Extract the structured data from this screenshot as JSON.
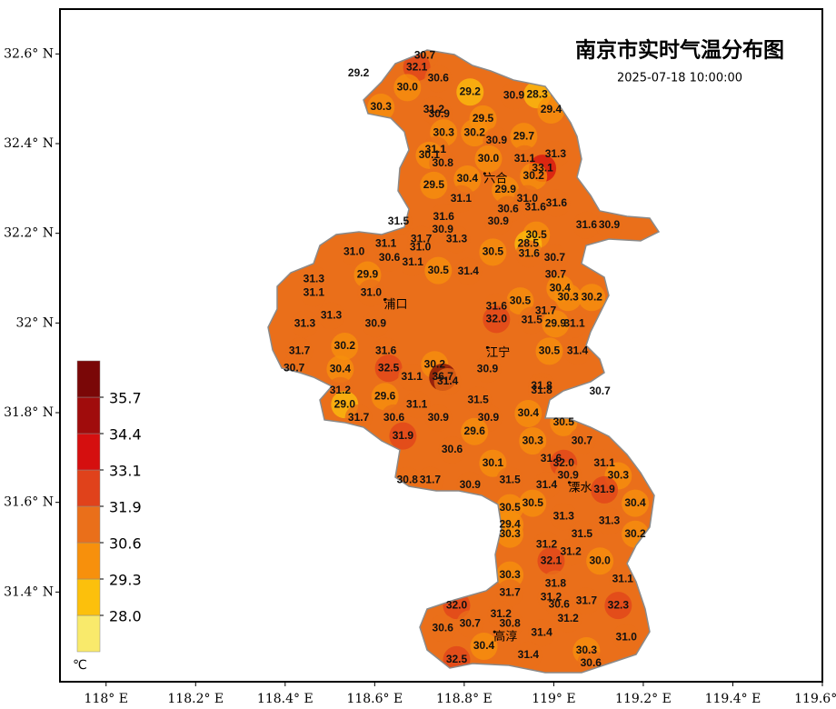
{
  "chart_data": {
    "type": "station-map",
    "title": "南京市实时气温分布图",
    "subtitle": "2025-07-18 10:00:00",
    "xlim": [
      117.897,
      119.6
    ],
    "ylim": [
      31.2,
      32.7
    ],
    "xticks": [
      {
        "value": 118.0,
        "label": "118° E"
      },
      {
        "value": 118.2,
        "label": "118.2° E"
      },
      {
        "value": 118.4,
        "label": "118.4° E"
      },
      {
        "value": 118.6,
        "label": "118.6° E"
      },
      {
        "value": 118.8,
        "label": "118.8° E"
      },
      {
        "value": 119.0,
        "label": "119° E"
      },
      {
        "value": 119.2,
        "label": "119.2° E"
      },
      {
        "value": 119.4,
        "label": "119.4° E"
      },
      {
        "value": 119.6,
        "label": "119.6° E"
      }
    ],
    "yticks": [
      {
        "value": 32.6,
        "label": "32.6° N"
      },
      {
        "value": 32.4,
        "label": "32.4° N"
      },
      {
        "value": 32.2,
        "label": "32.2° N"
      },
      {
        "value": 32.0,
        "label": "32° N"
      },
      {
        "value": 31.8,
        "label": "31.8° N"
      },
      {
        "value": 31.6,
        "label": "31.6° N"
      },
      {
        "value": 31.4,
        "label": "31.4° N"
      }
    ],
    "colorbar": {
      "unit": "℃",
      "levels": [
        {
          "value": 28.0,
          "label": "28.0"
        },
        {
          "value": 29.3,
          "label": "29.3"
        },
        {
          "value": 30.6,
          "label": "30.6"
        },
        {
          "value": 31.9,
          "label": "31.9"
        },
        {
          "value": 33.1,
          "label": "33.1"
        },
        {
          "value": 34.4,
          "label": "34.4"
        },
        {
          "value": 35.7,
          "label": "35.7"
        }
      ],
      "colors": [
        "#f9ea6b",
        "#fcc00c",
        "#f7900c",
        "#ea6f1a",
        "#e0421b",
        "#d50f0f",
        "#a00c0c",
        "#7a0707"
      ]
    },
    "places": {
      "names": [
        "浦口",
        "江宁",
        "六合",
        "溧水",
        "高淳"
      ],
      "lon": [
        118.647,
        118.876,
        118.87,
        119.059,
        118.892
      ],
      "lat": [
        32.04,
        31.933,
        32.321,
        31.632,
        31.299
      ]
    },
    "stations": {
      "lon": [
        118.712,
        118.564,
        118.694,
        118.742,
        118.673,
        118.813,
        118.911,
        118.963,
        118.614,
        118.994,
        118.732,
        118.744,
        118.842,
        118.754,
        118.823,
        118.872,
        118.933,
        118.736,
        118.722,
        119.004,
        118.752,
        118.854,
        118.935,
        118.975,
        118.807,
        118.955,
        118.732,
        118.892,
        118.793,
        118.941,
        119.006,
        118.898,
        118.959,
        118.754,
        118.653,
        118.876,
        119.073,
        119.124,
        118.752,
        118.961,
        118.625,
        118.704,
        118.783,
        118.943,
        118.554,
        118.702,
        118.864,
        118.945,
        118.633,
        119.002,
        118.685,
        118.464,
        118.584,
        118.742,
        118.809,
        119.004,
        118.464,
        118.592,
        119.014,
        119.032,
        119.085,
        118.925,
        118.872,
        118.503,
        118.872,
        118.951,
        118.982,
        118.602,
        119.046,
        119.004,
        118.444,
        118.432,
        118.625,
        118.533,
        118.99,
        119.053,
        118.42,
        118.523,
        118.631,
        118.683,
        118.734,
        118.752,
        118.763,
        118.852,
        118.523,
        118.623,
        118.973,
        118.973,
        119.103,
        118.533,
        118.694,
        118.831,
        118.943,
        118.564,
        118.643,
        118.742,
        118.854,
        119.022,
        118.823,
        118.663,
        118.953,
        119.063,
        118.773,
        118.994,
        119.022,
        119.113,
        118.864,
        118.673,
        118.724,
        118.902,
        119.032,
        119.144,
        118.984,
        118.813,
        119.113,
        118.902,
        118.953,
        119.182,
        119.022,
        119.124,
        118.902,
        118.902,
        119.063,
        119.182,
        118.984,
        119.038,
        118.994,
        119.103,
        118.902,
        119.154,
        119.004,
        118.902,
        118.994,
        119.012,
        119.073,
        119.144,
        118.783,
        118.882,
        118.902,
        119.032,
        118.752,
        118.813,
        118.973,
        119.162,
        118.844,
        118.943,
        119.073,
        118.783,
        119.083
      ],
      "lat": [
        32.596,
        32.556,
        32.57,
        32.545,
        32.525,
        32.515,
        32.507,
        32.509,
        32.481,
        32.475,
        32.475,
        32.465,
        32.455,
        32.424,
        32.424,
        32.406,
        32.416,
        32.386,
        32.374,
        32.376,
        32.356,
        32.366,
        32.366,
        32.345,
        32.321,
        32.327,
        32.307,
        32.297,
        32.277,
        32.277,
        32.267,
        32.253,
        32.257,
        32.236,
        32.226,
        32.226,
        32.218,
        32.218,
        32.208,
        32.196,
        32.176,
        32.186,
        32.186,
        32.176,
        32.158,
        32.168,
        32.158,
        32.154,
        32.145,
        32.145,
        32.135,
        32.097,
        32.107,
        32.117,
        32.115,
        32.107,
        32.067,
        32.067,
        32.077,
        32.057,
        32.057,
        32.049,
        32.036,
        32.016,
        32.008,
        32.006,
        32.026,
        31.998,
        31.998,
        31.998,
        31.998,
        31.937,
        31.937,
        31.948,
        31.937,
        31.937,
        31.899,
        31.897,
        31.899,
        31.879,
        31.907,
        31.879,
        31.869,
        31.897,
        31.849,
        31.836,
        31.859,
        31.849,
        31.847,
        31.818,
        31.818,
        31.828,
        31.798,
        31.788,
        31.788,
        31.788,
        31.788,
        31.778,
        31.758,
        31.748,
        31.737,
        31.737,
        31.717,
        31.697,
        31.687,
        31.687,
        31.687,
        31.649,
        31.649,
        31.649,
        31.659,
        31.659,
        31.638,
        31.638,
        31.628,
        31.588,
        31.598,
        31.598,
        31.568,
        31.558,
        31.55,
        31.529,
        31.529,
        31.529,
        31.505,
        31.489,
        31.469,
        31.469,
        31.438,
        31.428,
        31.418,
        31.398,
        31.388,
        31.372,
        31.38,
        31.37,
        31.37,
        31.35,
        31.329,
        31.34,
        31.319,
        31.329,
        31.309,
        31.299,
        31.279,
        31.259,
        31.269,
        31.249,
        31.241
      ],
      "values": [
        30.7,
        29.2,
        32.1,
        30.6,
        30.0,
        29.2,
        30.9,
        28.3,
        30.3,
        29.4,
        31.2,
        30.9,
        29.5,
        30.3,
        30.2,
        30.9,
        29.7,
        31.1,
        30.1,
        31.3,
        30.8,
        30.0,
        31.1,
        33.1,
        30.4,
        30.2,
        29.5,
        29.9,
        31.1,
        31.0,
        31.6,
        30.6,
        31.6,
        31.6,
        31.5,
        30.9,
        31.6,
        30.9,
        30.9,
        30.5,
        31.1,
        31.7,
        31.3,
        28.5,
        31.0,
        31.0,
        30.5,
        31.6,
        30.6,
        30.7,
        31.1,
        31.3,
        29.9,
        30.5,
        31.4,
        30.7,
        31.1,
        31.0,
        30.4,
        30.3,
        30.2,
        30.5,
        31.6,
        31.3,
        32.0,
        31.5,
        31.7,
        30.9,
        31.1,
        29.9,
        31.3,
        31.7,
        31.6,
        30.2,
        30.5,
        31.4,
        30.7,
        30.4,
        32.5,
        31.1,
        30.2,
        36.7,
        31.4,
        30.9,
        31.2,
        29.6,
        31.8,
        31.8,
        30.7,
        29.0,
        31.1,
        31.5,
        30.4,
        31.7,
        30.6,
        30.9,
        30.9,
        30.5,
        29.6,
        31.9,
        30.3,
        30.7,
        30.6,
        31.6,
        32.0,
        31.1,
        30.1,
        30.8,
        31.7,
        31.5,
        30.9,
        30.3,
        31.4,
        30.9,
        31.9,
        30.5,
        30.5,
        30.4,
        31.3,
        31.3,
        29.4,
        30.3,
        31.5,
        30.2,
        31.2,
        31.2,
        32.1,
        30.0,
        30.3,
        31.1,
        31.8,
        31.7,
        31.2,
        30.6,
        31.7,
        32.3,
        32.0,
        31.2,
        30.8,
        31.2,
        30.6,
        30.7,
        31.4,
        31.0,
        30.4,
        31.4,
        30.3,
        32.5,
        30.6
      ],
      "value_labels": [
        "30.7",
        "29.2",
        "32.1",
        "30.6",
        "30.0",
        "29.2",
        "30.9",
        "28.3",
        "30.3",
        "29.4",
        "31.2",
        "30.9",
        "29.5",
        "30.3",
        "30.2",
        "30.9",
        "29.7",
        "31.1",
        "30.1",
        "31.3",
        "30.8",
        "30.0",
        "31.1",
        "33.1",
        "30.4",
        "30.2",
        "29.5",
        "29.9",
        "31.1",
        "31.0",
        "31.6",
        "30.6",
        "31.6",
        "31.6",
        "31.5",
        "30.9",
        "31.6",
        "30.9",
        "30.9",
        "30.5",
        "31.1",
        "31.7",
        "31.3",
        "28.5",
        "31.0",
        "31.0",
        "30.5",
        "31.6",
        "30.6",
        "30.7",
        "31.1",
        "31.3",
        "29.9",
        "30.5",
        "31.4",
        "30.7",
        "31.1",
        "31.0",
        "30.4",
        "30.3",
        "30.2",
        "30.5",
        "31.6",
        "31.3",
        "32.0",
        "31.5",
        "31.7",
        "30.9",
        "31.1",
        "29.9",
        "31.3",
        "31.7",
        "31.6",
        "30.2",
        "30.5",
        "31.4",
        "30.7",
        "30.4",
        "32.5",
        "31.1",
        "30.2",
        "36.7",
        "31.4",
        "30.9",
        "31.2",
        "29.6",
        "31.8",
        "31.8",
        "30.7",
        "29.0",
        "31.1",
        "31.5",
        "30.4",
        "31.7",
        "30.6",
        "30.9",
        "30.9",
        "30.5",
        "29.6",
        "31.9",
        "30.3",
        "30.7",
        "30.6",
        "31.6",
        "32.0",
        "31.1",
        "30.1",
        "30.8",
        "31.7",
        "31.5",
        "30.9",
        "30.3",
        "31.4",
        "30.9",
        "31.9",
        "30.5",
        "30.5",
        "30.4",
        "31.3",
        "31.3",
        "29.4",
        "30.3",
        "31.5",
        "30.2",
        "31.2",
        "31.2",
        "32.1",
        "30.0",
        "30.3",
        "31.1",
        "31.8",
        "31.7",
        "31.2",
        "30.6",
        "31.7",
        "32.3",
        "32.0",
        "31.2",
        "30.8",
        "31.2",
        "30.6",
        "30.7",
        "31.4",
        "31.0",
        "30.4",
        "31.4",
        "30.3",
        "32.5",
        "30.6"
      ]
    }
  }
}
